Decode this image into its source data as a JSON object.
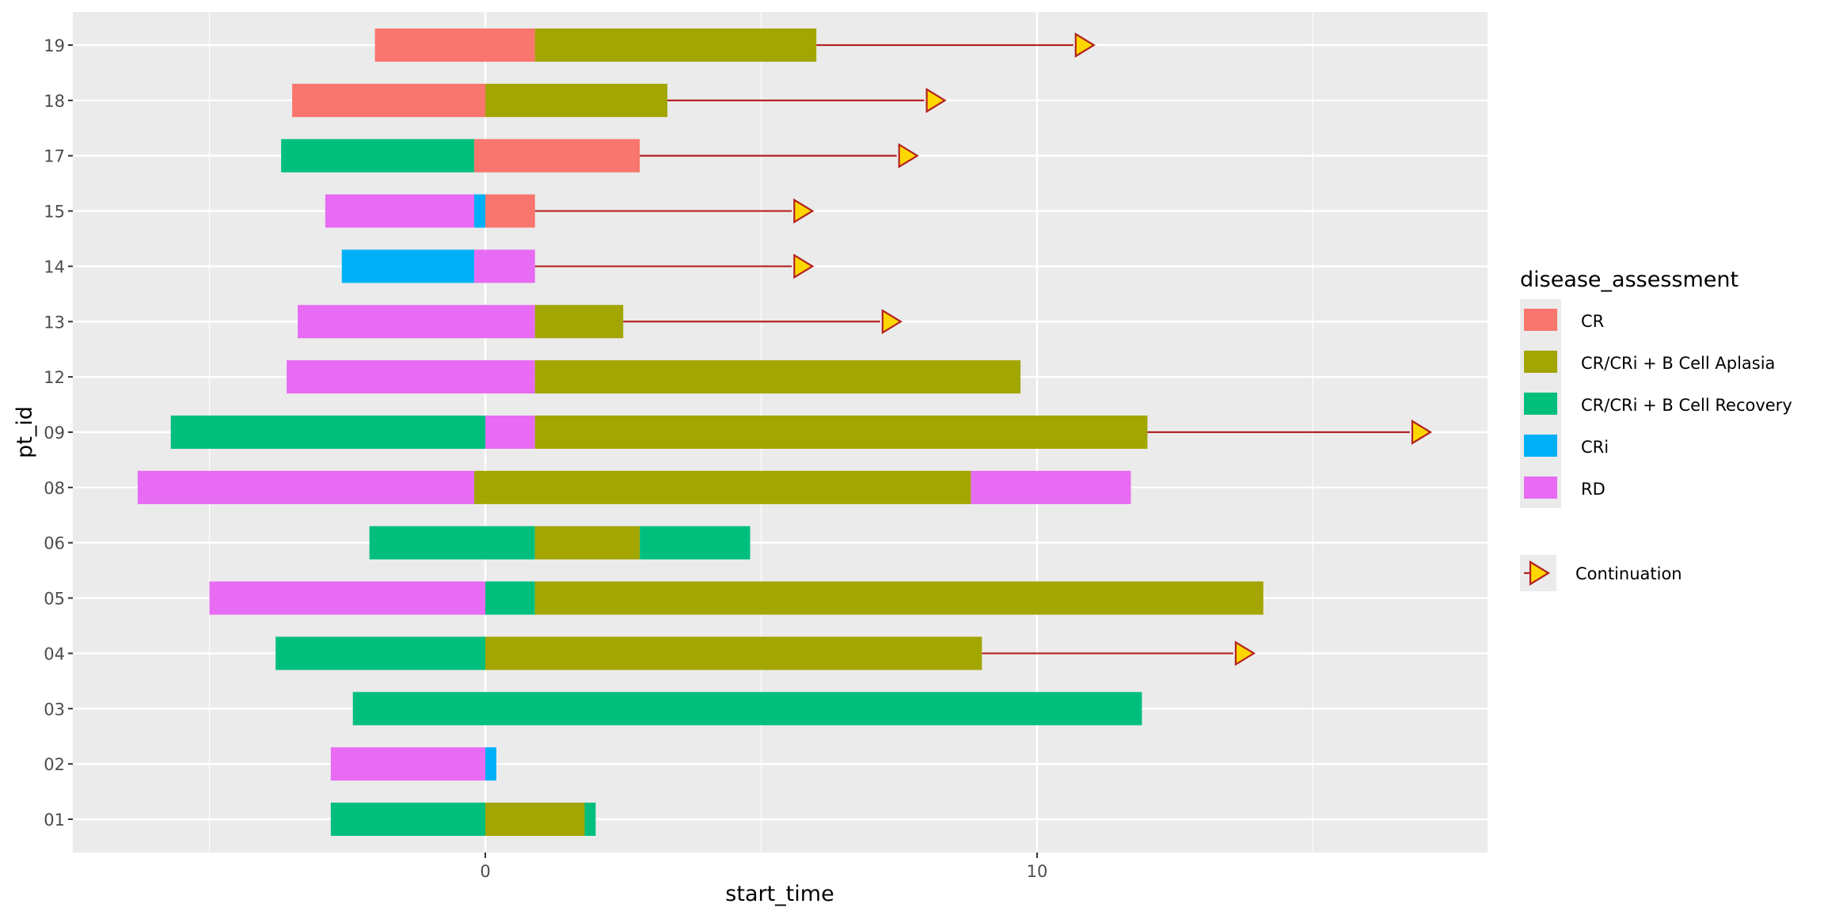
{
  "chart_data": {
    "type": "bar",
    "subtype": "horizontal-swimmer",
    "xlabel": "start_time",
    "ylabel": "pt_id",
    "xlim": [
      -7.5,
      18.1
    ],
    "x_ticks": [
      0,
      10
    ],
    "x_minor_grid": [
      -5,
      5,
      15
    ],
    "grid": true,
    "categories": [
      "01",
      "02",
      "03",
      "04",
      "05",
      "06",
      "08",
      "09",
      "12",
      "13",
      "14",
      "15",
      "17",
      "18",
      "19"
    ],
    "colors": {
      "CR": "#F8766D",
      "CR/CRi + B Cell Aplasia": "#A3A500",
      "CR/CRi + B Cell Recovery": "#00BF7D",
      "CRi": "#00B0F6",
      "RD": "#E76BF3"
    },
    "legend": {
      "title": "disease_assessment",
      "position": "right",
      "entries": [
        "CR",
        "CR/CRi + B Cell Aplasia",
        "CR/CRi + B Cell Recovery",
        "CRi",
        "RD"
      ],
      "continuation_label": "Continuation"
    },
    "continuation_colors": {
      "fill": "#FFD700",
      "stroke": "#B22222"
    },
    "rows": [
      {
        "pt_id": "01",
        "segments": [
          {
            "start": -2.8,
            "end": 0,
            "status": "CR/CRi + B Cell Recovery"
          },
          {
            "start": 0,
            "end": 1.8,
            "status": "CR/CRi + B Cell Aplasia"
          },
          {
            "start": 1.8,
            "end": 2.0,
            "status": "CR/CRi + B Cell Recovery"
          }
        ],
        "continuation": null
      },
      {
        "pt_id": "02",
        "segments": [
          {
            "start": -2.8,
            "end": 0,
            "status": "RD"
          },
          {
            "start": 0,
            "end": 0.2,
            "status": "CRi"
          }
        ],
        "continuation": null
      },
      {
        "pt_id": "03",
        "segments": [
          {
            "start": -2.4,
            "end": 11.9,
            "status": "CR/CRi + B Cell Recovery"
          }
        ],
        "continuation": null
      },
      {
        "pt_id": "04",
        "segments": [
          {
            "start": -3.8,
            "end": 0,
            "status": "CR/CRi + B Cell Recovery"
          },
          {
            "start": 0,
            "end": 9.0,
            "status": "CR/CRi + B Cell Aplasia"
          }
        ],
        "continuation": 13.7
      },
      {
        "pt_id": "05",
        "segments": [
          {
            "start": -5.0,
            "end": 0,
            "status": "RD"
          },
          {
            "start": 0,
            "end": 0.9,
            "status": "CR/CRi + B Cell Recovery"
          },
          {
            "start": 0.9,
            "end": 14.1,
            "status": "CR/CRi + B Cell Aplasia"
          }
        ],
        "continuation": null
      },
      {
        "pt_id": "06",
        "segments": [
          {
            "start": -2.1,
            "end": 0.9,
            "status": "CR/CRi + B Cell Recovery"
          },
          {
            "start": 0.9,
            "end": 2.8,
            "status": "CR/CRi + B Cell Aplasia"
          },
          {
            "start": 2.8,
            "end": 4.8,
            "status": "CR/CRi + B Cell Recovery"
          }
        ],
        "continuation": null
      },
      {
        "pt_id": "08",
        "segments": [
          {
            "start": -6.3,
            "end": -0.2,
            "status": "RD"
          },
          {
            "start": -0.2,
            "end": 8.8,
            "status": "CR/CRi + B Cell Aplasia"
          },
          {
            "start": 8.8,
            "end": 11.7,
            "status": "RD"
          }
        ],
        "continuation": null
      },
      {
        "pt_id": "09",
        "segments": [
          {
            "start": -5.7,
            "end": 0,
            "status": "CR/CRi + B Cell Recovery"
          },
          {
            "start": 0,
            "end": 0.9,
            "status": "RD"
          },
          {
            "start": 0.9,
            "end": 12.0,
            "status": "CR/CRi + B Cell Aplasia"
          }
        ],
        "continuation": 16.9
      },
      {
        "pt_id": "12",
        "segments": [
          {
            "start": -3.6,
            "end": 0.9,
            "status": "RD"
          },
          {
            "start": 0.9,
            "end": 9.7,
            "status": "CR/CRi + B Cell Aplasia"
          }
        ],
        "continuation": null
      },
      {
        "pt_id": "13",
        "segments": [
          {
            "start": -3.4,
            "end": 0.9,
            "status": "RD"
          },
          {
            "start": 0.9,
            "end": 2.5,
            "status": "CR/CRi + B Cell Aplasia"
          }
        ],
        "continuation": 7.3
      },
      {
        "pt_id": "14",
        "segments": [
          {
            "start": -2.6,
            "end": -0.2,
            "status": "CRi"
          },
          {
            "start": -0.2,
            "end": 0.9,
            "status": "RD"
          }
        ],
        "continuation": 5.7
      },
      {
        "pt_id": "15",
        "segments": [
          {
            "start": -2.9,
            "end": -0.2,
            "status": "RD"
          },
          {
            "start": -0.2,
            "end": 0,
            "status": "CRi"
          },
          {
            "start": 0,
            "end": 0.9,
            "status": "CR"
          }
        ],
        "continuation": 5.7
      },
      {
        "pt_id": "17",
        "segments": [
          {
            "start": -3.7,
            "end": -0.2,
            "status": "CR/CRi + B Cell Recovery"
          },
          {
            "start": -0.2,
            "end": 2.8,
            "status": "CR"
          }
        ],
        "continuation": 7.6
      },
      {
        "pt_id": "18",
        "segments": [
          {
            "start": -3.5,
            "end": 0,
            "status": "CR"
          },
          {
            "start": 0,
            "end": 3.3,
            "status": "CR/CRi + B Cell Aplasia"
          }
        ],
        "continuation": 8.1
      },
      {
        "pt_id": "19",
        "segments": [
          {
            "start": -2.0,
            "end": 0.9,
            "status": "CR"
          },
          {
            "start": 0.9,
            "end": 6.0,
            "status": "CR/CRi + B Cell Aplasia"
          }
        ],
        "continuation": 10.8
      }
    ]
  }
}
